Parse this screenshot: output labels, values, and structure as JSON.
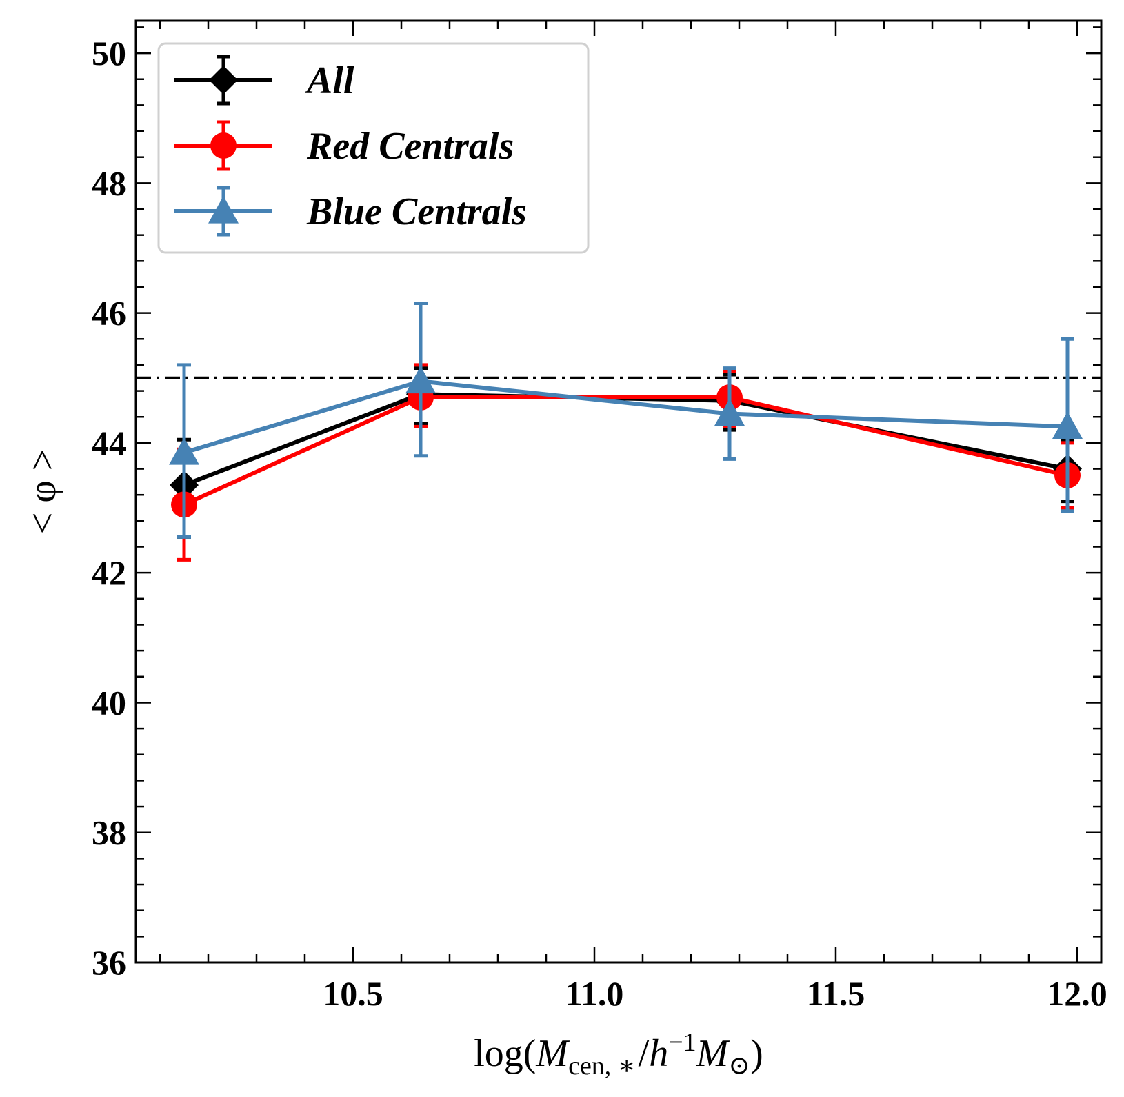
{
  "chart_data": {
    "type": "line",
    "xlabel": {
      "prefix": "log(",
      "M": "M",
      "sub1": "cen, ∗",
      "slash": "/",
      "h": "h",
      "sup": "−1",
      "M2": "M",
      "sub2": "⊙",
      "suffix": ")"
    },
    "ylabel": "< φ >",
    "xlim": [
      10.05,
      12.05
    ],
    "ylim": [
      36,
      50.5
    ],
    "x_ticks": [
      10.5,
      11.0,
      11.5,
      12.0
    ],
    "x_tick_labels": [
      "10.5",
      "11.0",
      "11.5",
      "12.0"
    ],
    "y_ticks": [
      36,
      38,
      40,
      42,
      44,
      46,
      48,
      50
    ],
    "y_tick_labels": [
      "36",
      "38",
      "40",
      "42",
      "44",
      "46",
      "48",
      "50"
    ],
    "reference_line": {
      "y": 45,
      "style": "dash-dot",
      "color": "#000000"
    },
    "legend_position": "top-left",
    "series": [
      {
        "name": "All",
        "color": "#000000",
        "marker": "diamond",
        "x": [
          10.15,
          10.64,
          11.28,
          11.98
        ],
        "y": [
          43.35,
          44.75,
          44.65,
          43.6
        ],
        "yerr_lower": [
          0.8,
          0.45,
          0.45,
          0.5
        ],
        "yerr_upper": [
          0.7,
          0.4,
          0.4,
          0.45
        ]
      },
      {
        "name": "Red Centrals",
        "color": "#ff0000",
        "marker": "circle",
        "x": [
          10.15,
          10.64,
          11.28,
          11.98
        ],
        "y": [
          43.05,
          44.7,
          44.7,
          43.5
        ],
        "yerr_lower": [
          0.85,
          0.45,
          0.45,
          0.5
        ],
        "yerr_upper": [
          0.85,
          0.5,
          0.4,
          0.5
        ]
      },
      {
        "name": "Blue Centrals",
        "color": "#4682b4",
        "marker": "triangle",
        "x": [
          10.15,
          10.64,
          11.28,
          11.98
        ],
        "y": [
          43.85,
          44.95,
          44.45,
          44.25
        ],
        "yerr_lower": [
          1.3,
          1.15,
          0.7,
          1.3
        ],
        "yerr_upper": [
          1.35,
          1.2,
          0.7,
          1.35
        ]
      }
    ]
  }
}
